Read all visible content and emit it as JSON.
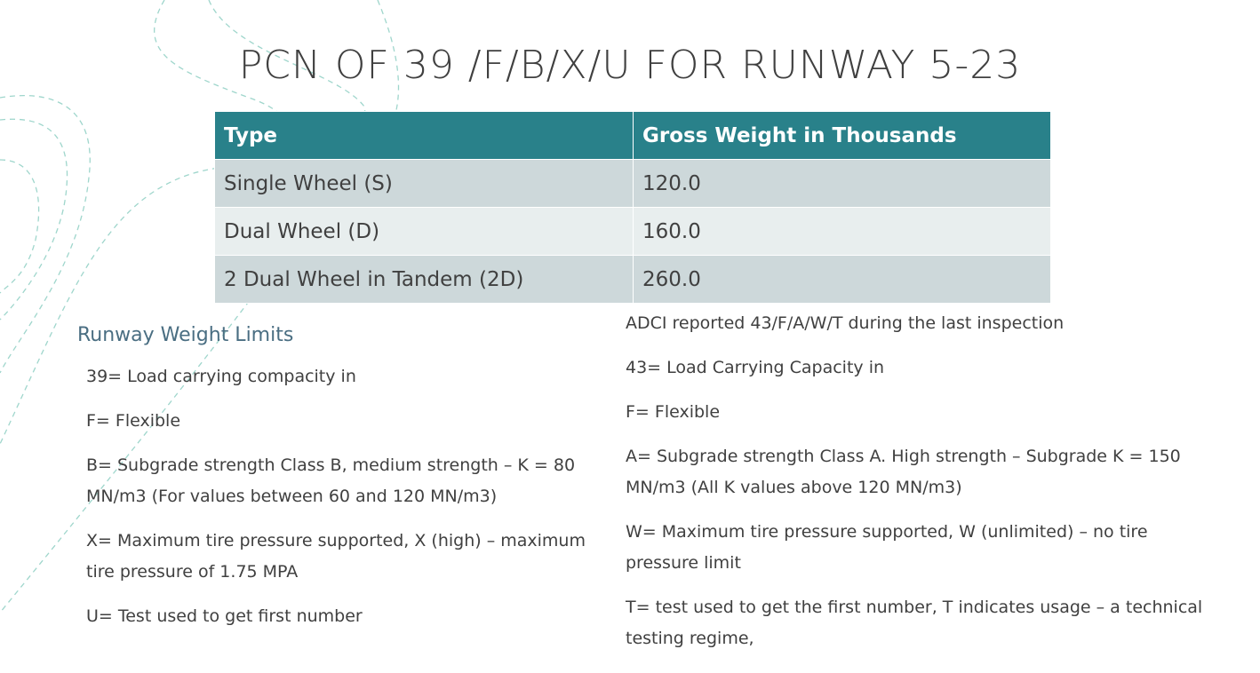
{
  "title": "PCN OF 39 /F/B/X/U FOR RUNWAY 5-23",
  "table": {
    "header": [
      "Type",
      "Gross Weight in Thousands"
    ],
    "rows": [
      [
        "Single Wheel (S)",
        "120.0"
      ],
      [
        "Dual Wheel (D)",
        "160.0"
      ],
      [
        "2 Dual Wheel in Tandem (2D)",
        "260.0"
      ]
    ]
  },
  "left": {
    "heading": "Runway Weight Limits",
    "items": [
      "39= Load carrying compacity in",
      "F= Flexible",
      "B= Subgrade strength Class B, medium strength – K = 80 MN/m3 (For values between 60 and 120 MN/m3)",
      "X= Maximum tire pressure supported, X (high) – maximum tire pressure of 1.75 MPA",
      "U= Test used to get first number"
    ]
  },
  "right": {
    "items": [
      "ADCI reported 43/F/A/W/T during the last inspection",
      "43= Load Carrying Capacity in",
      "F= Flexible",
      "A= Subgrade strength Class A. High strength – Subgrade K = 150 MN/m3 (All K values above 120 MN/m3)",
      "W= Maximum tire pressure supported, W (unlimited) – no tire pressure limit",
      "T= test used to get the first number, T indicates usage – a technical testing regime,"
    ]
  }
}
